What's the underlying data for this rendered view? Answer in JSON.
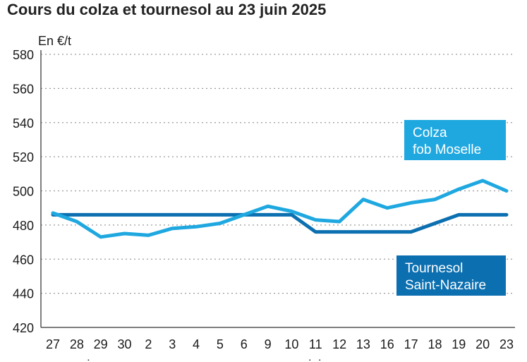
{
  "chart_data": {
    "type": "line",
    "title": "Cours du colza et tournesol au 23 juin 2025",
    "ylabel": "En €/t",
    "ylim": [
      420,
      580
    ],
    "yticks": [
      420,
      440,
      460,
      480,
      500,
      520,
      540,
      560,
      580
    ],
    "grid": true,
    "categories": [
      "27",
      "28",
      "29",
      "30",
      "2",
      "3",
      "4",
      "5",
      "6",
      "9",
      "10",
      "11",
      "12",
      "13",
      "16",
      "17",
      "18",
      "19",
      "20",
      "23"
    ],
    "month_labels": [
      {
        "label": "mai",
        "at_index": 1
      },
      {
        "label": "juin",
        "at_index": 11
      }
    ],
    "series": [
      {
        "name": "Colza fob Moselle",
        "legend_lines": [
          "Colza",
          "fob Moselle"
        ],
        "color": "#1fa8e0",
        "values": [
          487,
          482,
          473,
          475,
          474,
          478,
          479,
          481,
          486,
          491,
          488,
          483,
          482,
          495,
          490,
          493,
          495,
          501,
          506,
          500
        ]
      },
      {
        "name": "Tournesol Saint-Nazaire",
        "legend_lines": [
          "Tournesol",
          "Saint-Nazaire"
        ],
        "color": "#0b6fb0",
        "values": [
          486,
          486,
          486,
          486,
          486,
          486,
          486,
          486,
          486,
          486,
          486,
          476,
          476,
          476,
          476,
          476,
          481,
          486,
          486,
          486
        ]
      }
    ]
  }
}
